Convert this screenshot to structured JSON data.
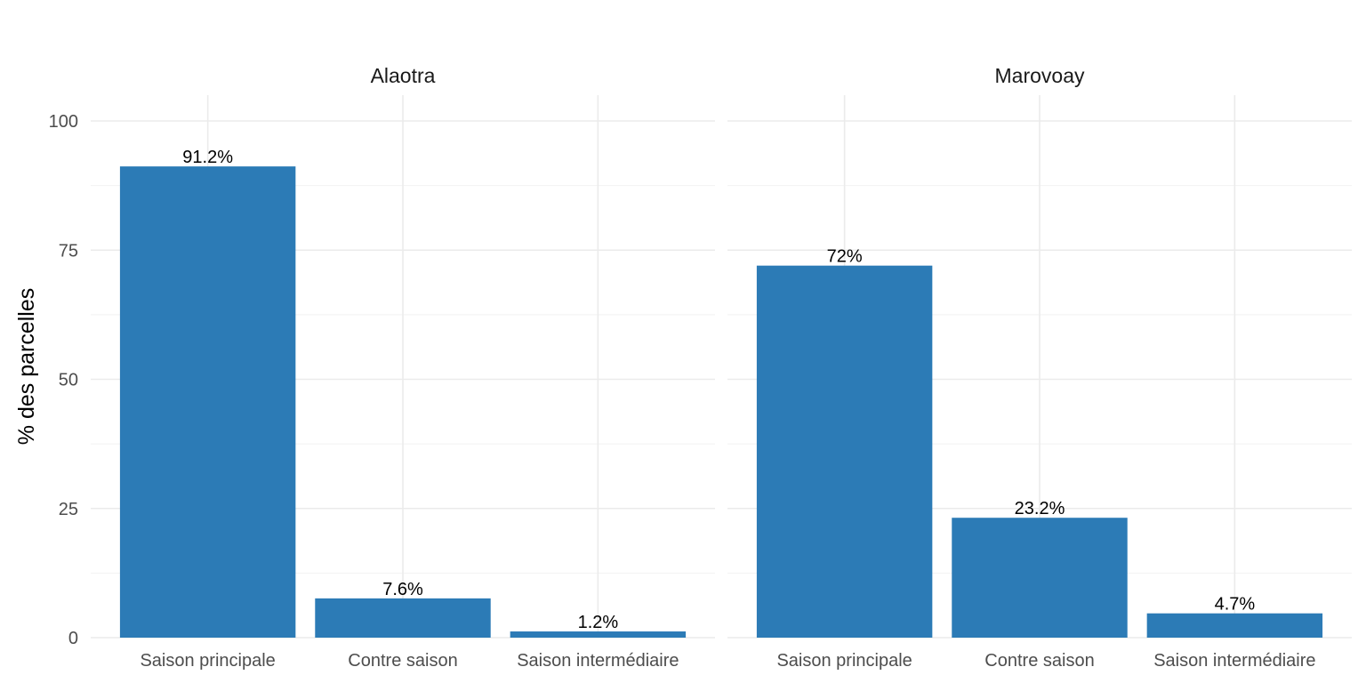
{
  "chart_data": {
    "type": "bar",
    "ylabel": "% des parcelles",
    "xlabel": "",
    "ylim": [
      0,
      100
    ],
    "yticks": [
      0,
      25,
      50,
      75,
      100
    ],
    "grid": true,
    "bar_color": "#2c7bb6",
    "categories": [
      "Saison principale",
      "Contre saison",
      "Saison intermédiaire"
    ],
    "panels": [
      {
        "title": "Alaotra",
        "values": [
          91.2,
          7.6,
          1.2
        ],
        "labels": [
          "91.2%",
          "7.6%",
          "1.2%"
        ]
      },
      {
        "title": "Marovoay",
        "values": [
          72,
          23.2,
          4.7
        ],
        "labels": [
          "72%",
          "23.2%",
          "4.7%"
        ]
      }
    ]
  }
}
